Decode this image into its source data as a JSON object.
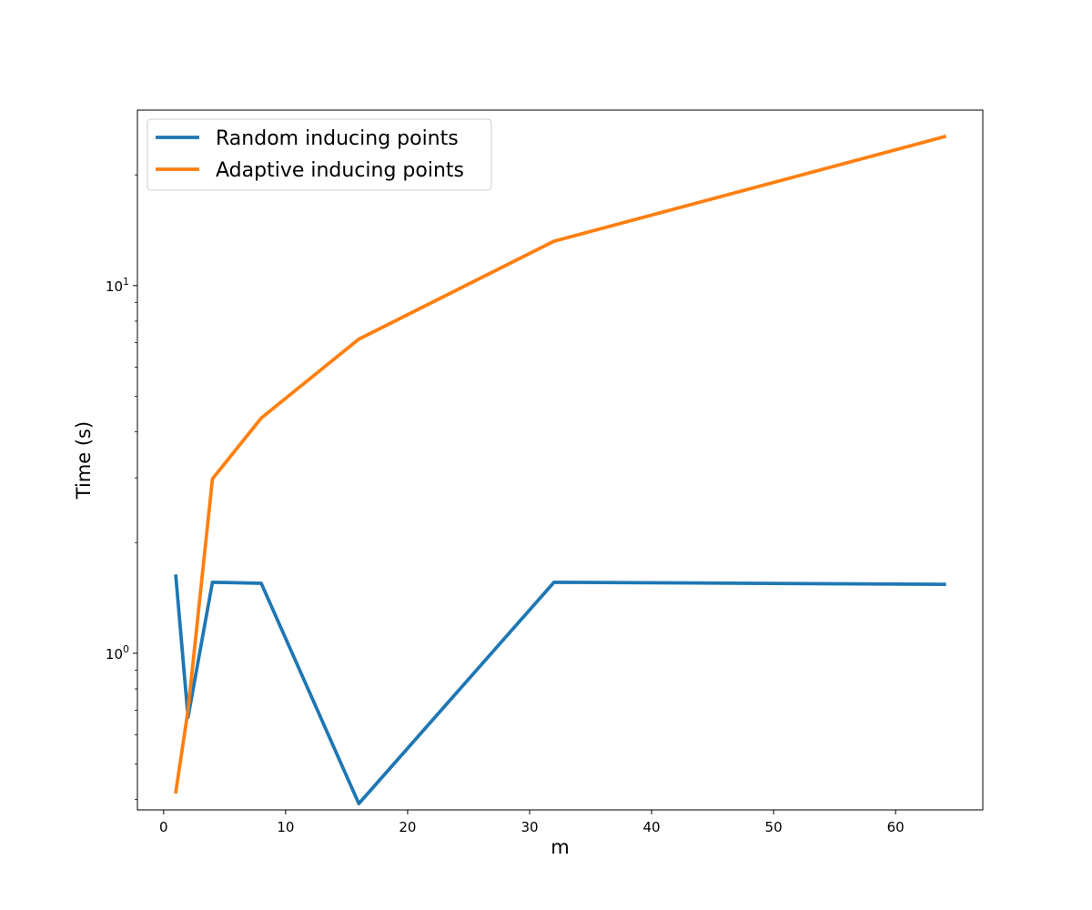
{
  "chart_data": {
    "type": "line",
    "xlabel": "m",
    "ylabel": "Time (s)",
    "yscale": "log",
    "xlim": [
      -2.15,
      67.15
    ],
    "ylim": [
      0.375,
      30
    ],
    "xticks": [
      0,
      10,
      20,
      30,
      40,
      50,
      60
    ],
    "xtick_labels": [
      "0",
      "10",
      "20",
      "30",
      "40",
      "50",
      "60"
    ],
    "yticks_major": [
      1,
      10
    ],
    "ytick_major_labels": [
      {
        "base": "10",
        "exp": "0"
      },
      {
        "base": "10",
        "exp": "1"
      }
    ],
    "yticks_minor": [
      0.4,
      0.5,
      0.6,
      0.7,
      0.8,
      0.9,
      2,
      3,
      4,
      5,
      6,
      7,
      8,
      9,
      20
    ],
    "legend_position": "top-left",
    "grid": false,
    "series": [
      {
        "name": "Random inducing points",
        "color": "#1f77b4",
        "x": [
          1,
          2,
          4,
          8,
          16,
          32,
          64
        ],
        "y": [
          1.62,
          0.67,
          1.56,
          1.55,
          0.39,
          1.56,
          1.54
        ]
      },
      {
        "name": "Adaptive inducing points",
        "color": "#ff7f0e",
        "x": [
          1,
          2,
          4,
          8,
          16,
          32,
          64
        ],
        "y": [
          0.42,
          0.7,
          2.98,
          4.36,
          7.15,
          13.2,
          25.4
        ]
      }
    ]
  }
}
